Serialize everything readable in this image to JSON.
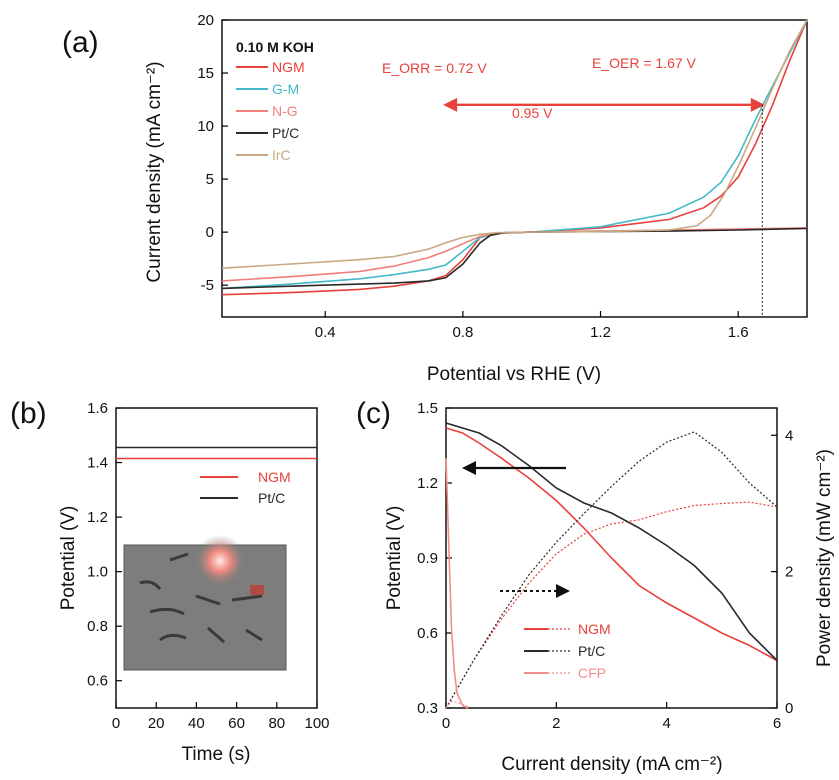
{
  "colors": {
    "NGM": "#e8413c",
    "G-M": "#43b9c9",
    "N-G": "#f07f7a",
    "Pt/C": "#2a2a2a",
    "IrC": "#c8a882",
    "CFP": "#f08f8a",
    "arrow_red": "#e8413c"
  },
  "chart_data": [
    {
      "id": "a",
      "type": "line",
      "panel_label": "(a)",
      "title": "0.10 M KOH",
      "xlabel": "Potential vs RHE (V)",
      "ylabel": "Current density (mA cm⁻²)",
      "xlim": [
        0.1,
        1.8
      ],
      "ylim": [
        -8,
        20
      ],
      "xticks": [
        0.4,
        0.8,
        1.2,
        1.6
      ],
      "xtick_labels": [
        "0.4",
        "0.8",
        "1.2",
        "1.6"
      ],
      "yticks": [
        -5,
        0,
        5,
        10,
        15,
        20
      ],
      "ytick_labels": [
        "-5",
        "0",
        "5",
        "10",
        "15",
        "20"
      ],
      "annotations": {
        "e_orr": "E_ORR = 0.72 V",
        "e_oer": "E_OER = 1.67 V",
        "delta": "0.95 V"
      },
      "legend_position": "top-left",
      "series": [
        {
          "name": "NGM",
          "color_key": "NGM",
          "x": [
            0.1,
            0.3,
            0.5,
            0.6,
            0.7,
            0.75,
            0.8,
            0.85,
            0.9,
            1.0,
            1.2,
            1.4,
            1.5,
            1.55,
            1.6,
            1.65,
            1.7,
            1.75,
            1.8
          ],
          "y": [
            -5.9,
            -5.7,
            -5.4,
            -5.1,
            -4.6,
            -4.1,
            -2.6,
            -0.5,
            -0.1,
            0.0,
            0.4,
            1.2,
            2.3,
            3.4,
            5.2,
            8.3,
            12.0,
            16.2,
            20.0
          ]
        },
        {
          "name": "G-M",
          "color_key": "G-M",
          "x": [
            0.1,
            0.3,
            0.5,
            0.6,
            0.7,
            0.75,
            0.8,
            0.85,
            0.9,
            1.0,
            1.2,
            1.4,
            1.5,
            1.55,
            1.6,
            1.65,
            1.7,
            1.75,
            1.8
          ],
          "y": [
            -5.3,
            -4.9,
            -4.4,
            -4.0,
            -3.5,
            -3.1,
            -1.8,
            -0.5,
            -0.1,
            0.0,
            0.5,
            1.8,
            3.3,
            4.7,
            7.2,
            10.6,
            13.8,
            16.9,
            20.0
          ]
        },
        {
          "name": "N-G",
          "color_key": "N-G",
          "x": [
            0.1,
            0.3,
            0.5,
            0.6,
            0.7,
            0.75,
            0.8,
            0.85,
            0.9,
            1.0,
            1.2,
            1.4,
            1.6,
            1.8
          ],
          "y": [
            -4.6,
            -4.2,
            -3.7,
            -3.2,
            -2.4,
            -1.8,
            -1.1,
            -0.4,
            -0.1,
            0.0,
            0.1,
            0.2,
            0.3,
            0.4
          ]
        },
        {
          "name": "Pt/C",
          "color_key": "Pt/C",
          "x": [
            0.1,
            0.3,
            0.5,
            0.6,
            0.7,
            0.75,
            0.8,
            0.85,
            0.88,
            0.92,
            1.0,
            1.2,
            1.4,
            1.6,
            1.8
          ],
          "y": [
            -5.3,
            -5.1,
            -4.9,
            -4.8,
            -4.6,
            -4.3,
            -3.0,
            -1.0,
            -0.3,
            -0.05,
            0.0,
            0.05,
            0.1,
            0.2,
            0.35
          ]
        },
        {
          "name": "IrC",
          "color_key": "IrC",
          "x": [
            0.1,
            0.3,
            0.5,
            0.6,
            0.7,
            0.75,
            0.8,
            0.85,
            0.9,
            1.0,
            1.2,
            1.4,
            1.48,
            1.52,
            1.56,
            1.6,
            1.65,
            1.7,
            1.75,
            1.8
          ],
          "y": [
            -3.4,
            -3.0,
            -2.6,
            -2.3,
            -1.6,
            -1.0,
            -0.5,
            -0.2,
            -0.05,
            0.0,
            0.05,
            0.2,
            0.6,
            1.6,
            3.6,
            6.2,
            9.8,
            13.6,
            17.1,
            20.0
          ]
        }
      ]
    },
    {
      "id": "b",
      "type": "line",
      "panel_label": "(b)",
      "xlabel": "Time (s)",
      "ylabel": "Potential (V)",
      "xlim": [
        0,
        100
      ],
      "ylim": [
        0.5,
        1.6
      ],
      "xticks": [
        0,
        20,
        40,
        60,
        80,
        100
      ],
      "xtick_labels": [
        "0",
        "20",
        "40",
        "60",
        "80",
        "100"
      ],
      "yticks": [
        0.6,
        0.8,
        1.0,
        1.2,
        1.4,
        1.6
      ],
      "ytick_labels": [
        "0.6",
        "0.8",
        "1.0",
        "1.2",
        "1.4",
        "1.6"
      ],
      "legend_position": "upper-right",
      "series": [
        {
          "name": "NGM",
          "color_key": "NGM",
          "x": [
            0,
            100
          ],
          "y": [
            1.415,
            1.415
          ]
        },
        {
          "name": "Pt/C",
          "color_key": "Pt/C",
          "x": [
            0,
            100
          ],
          "y": [
            1.455,
            1.455
          ]
        }
      ]
    },
    {
      "id": "c",
      "type": "line",
      "panel_label": "(c)",
      "xlabel": "Current density (mA cm⁻²)",
      "ylabel": "Potential (V)",
      "ylabel_right": "Power density (mW cm⁻²)",
      "xlim": [
        0,
        6
      ],
      "ylim": [
        0.3,
        1.5
      ],
      "ylim_right": [
        0,
        4.4
      ],
      "xticks": [
        0,
        2,
        4,
        6
      ],
      "xtick_labels": [
        "0",
        "2",
        "4",
        "6"
      ],
      "yticks": [
        0.3,
        0.6,
        0.9,
        1.2,
        1.5
      ],
      "ytick_labels": [
        "0.3",
        "0.6",
        "0.9",
        "1.2",
        "1.5"
      ],
      "yticks_right": [
        0,
        2,
        4
      ],
      "ytick_labels_right": [
        "0",
        "2",
        "4"
      ],
      "legend_position": "bottom-center",
      "series": [
        {
          "name": "NGM",
          "color_key": "NGM",
          "axis": "left",
          "x": [
            0,
            0.3,
            0.6,
            1.0,
            1.5,
            2.0,
            2.5,
            3.0,
            3.5,
            4.0,
            4.5,
            5.0,
            5.5,
            6.0
          ],
          "y": [
            1.42,
            1.4,
            1.36,
            1.3,
            1.22,
            1.13,
            1.02,
            0.9,
            0.79,
            0.72,
            0.66,
            0.6,
            0.55,
            0.49
          ]
        },
        {
          "name": "NGM",
          "color_key": "NGM",
          "axis": "right",
          "dashed": true,
          "x": [
            0,
            0.5,
            1.0,
            1.5,
            2.0,
            2.5,
            3.0,
            3.5,
            4.0,
            4.5,
            5.0,
            5.5,
            6.0
          ],
          "y": [
            0,
            0.7,
            1.3,
            1.83,
            2.26,
            2.55,
            2.7,
            2.76,
            2.88,
            2.97,
            3.0,
            3.02,
            2.95
          ]
        },
        {
          "name": "Pt/C",
          "color_key": "Pt/C",
          "axis": "left",
          "x": [
            0,
            0.3,
            0.6,
            1.0,
            1.5,
            2.0,
            2.5,
            3.0,
            3.5,
            4.0,
            4.5,
            5.0,
            5.5,
            6.0
          ],
          "y": [
            1.44,
            1.42,
            1.4,
            1.35,
            1.27,
            1.18,
            1.12,
            1.08,
            1.02,
            0.95,
            0.87,
            0.76,
            0.6,
            0.49
          ]
        },
        {
          "name": "Pt/C",
          "color_key": "Pt/C",
          "axis": "right",
          "dashed": true,
          "x": [
            0,
            0.5,
            1.0,
            1.5,
            2.0,
            2.5,
            3.0,
            3.5,
            4.0,
            4.5,
            5.0,
            5.5,
            6.0
          ],
          "y": [
            0,
            0.7,
            1.35,
            1.95,
            2.43,
            2.85,
            3.25,
            3.62,
            3.9,
            4.05,
            3.75,
            3.3,
            2.95
          ]
        },
        {
          "name": "CFP",
          "color_key": "CFP",
          "axis": "left",
          "x": [
            0,
            0.05,
            0.1,
            0.15,
            0.2,
            0.3,
            0.4
          ],
          "y": [
            1.3,
            0.95,
            0.62,
            0.45,
            0.36,
            0.31,
            0.3
          ]
        },
        {
          "name": "CFP",
          "color_key": "CFP",
          "axis": "right",
          "dashed": true,
          "x": [
            0,
            0.1,
            0.2,
            0.3,
            0.4
          ],
          "y": [
            0,
            0.1,
            0.08,
            0.05,
            0.02
          ]
        }
      ]
    }
  ]
}
